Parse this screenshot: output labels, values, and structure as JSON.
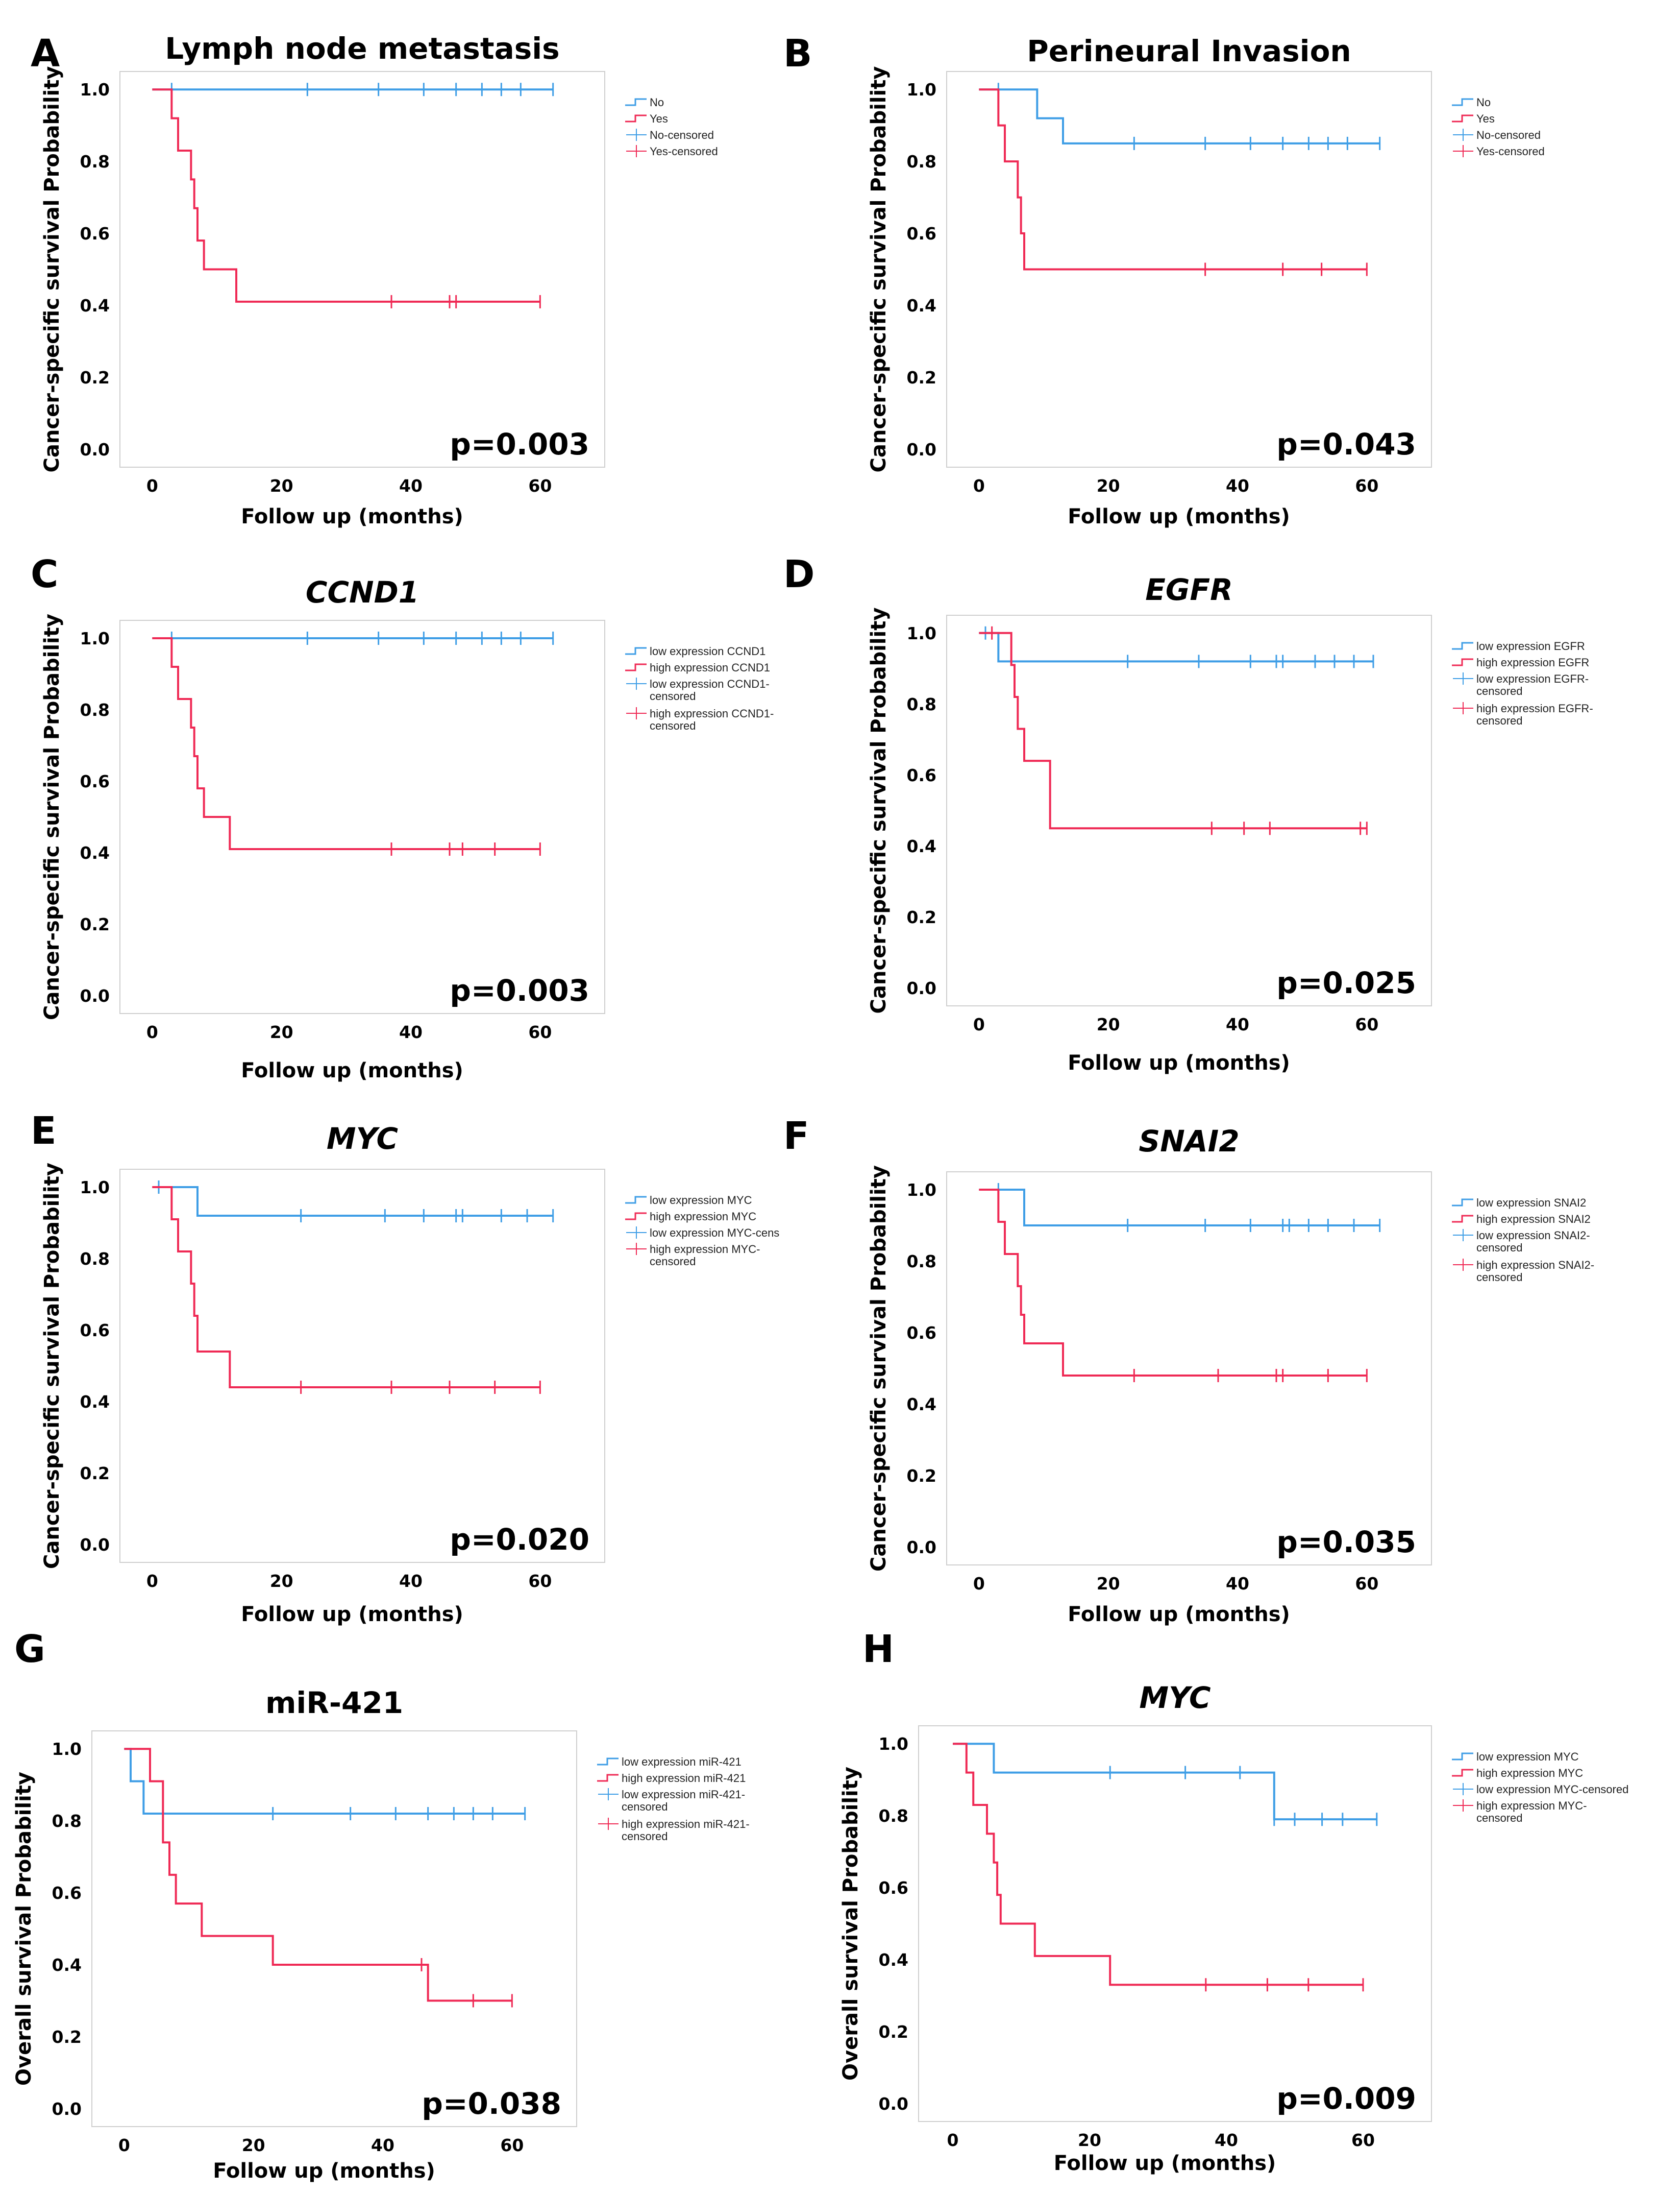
{
  "colors": {
    "low": "#3f9ee6",
    "high": "#ef2a55"
  },
  "x_label": "Follow up (months)",
  "chart_data": [
    {
      "type": "line",
      "panel": "A",
      "title": "Lymph node metastasis",
      "title_italic": false,
      "ylabel": "Cancer-specific survival Probability",
      "xlabel": "Follow up (months)",
      "xlim": [
        -5,
        70
      ],
      "ylim": [
        -0.05,
        1.05
      ],
      "xticks": [
        "0",
        "20",
        "40",
        "60"
      ],
      "yticks": [
        "0.0",
        "0.2",
        "0.4",
        "0.6",
        "0.8",
        "1.0"
      ],
      "p_value": "p=0.003",
      "legend": [
        "No",
        "Yes",
        "No-censored",
        "Yes-censored"
      ],
      "series": [
        {
          "name": "No",
          "group": "low",
          "x": [
            0,
            62
          ],
          "y": [
            1.0,
            1.0
          ],
          "censored": [
            3,
            24,
            35,
            42,
            47,
            51,
            54,
            57,
            62
          ]
        },
        {
          "name": "Yes",
          "group": "high",
          "x": [
            0,
            3,
            4,
            6,
            6.5,
            7,
            8,
            13,
            60
          ],
          "y": [
            1.0,
            0.92,
            0.83,
            0.75,
            0.67,
            0.58,
            0.5,
            0.41,
            0.41
          ],
          "censored": [
            37,
            46,
            47,
            60
          ]
        }
      ]
    },
    {
      "type": "line",
      "panel": "B",
      "title": "Perineural Invasion",
      "title_italic": false,
      "ylabel": "Cancer-specific survival Probability",
      "xlabel": "Follow up (months)",
      "xlim": [
        -5,
        70
      ],
      "ylim": [
        -0.05,
        1.05
      ],
      "xticks": [
        "0",
        "20",
        "40",
        "60"
      ],
      "yticks": [
        "0.0",
        "0.2",
        "0.4",
        "0.6",
        "0.8",
        "1.0"
      ],
      "p_value": "p=0.043",
      "legend": [
        "No",
        "Yes",
        "No-censored",
        "Yes-censored"
      ],
      "series": [
        {
          "name": "No",
          "group": "low",
          "x": [
            0,
            9,
            13,
            62
          ],
          "y": [
            1.0,
            0.92,
            0.85,
            0.85
          ],
          "censored": [
            3,
            24,
            35,
            42,
            47,
            51,
            54,
            57,
            62
          ]
        },
        {
          "name": "Yes",
          "group": "high",
          "x": [
            0,
            3,
            4,
            6,
            6.5,
            7,
            60
          ],
          "y": [
            1.0,
            0.9,
            0.8,
            0.7,
            0.6,
            0.5,
            0.5
          ],
          "censored": [
            35,
            47,
            53,
            60
          ]
        }
      ]
    },
    {
      "type": "line",
      "panel": "C",
      "title": "CCND1",
      "title_italic": true,
      "ylabel": "Cancer-specific survival Probability",
      "xlabel": "Follow up (months)",
      "xlim": [
        -5,
        70
      ],
      "ylim": [
        -0.05,
        1.05
      ],
      "xticks": [
        "0",
        "20",
        "40",
        "60"
      ],
      "yticks": [
        "0.0",
        "0.2",
        "0.4",
        "0.6",
        "0.8",
        "1.0"
      ],
      "p_value": "p=0.003",
      "legend": [
        "low expression CCND1",
        "high expression CCND1",
        "low expression CCND1-\ncensored",
        "high expression CCND1-\ncensored"
      ],
      "series": [
        {
          "name": "low expression CCND1",
          "group": "low",
          "x": [
            0,
            62
          ],
          "y": [
            1.0,
            1.0
          ],
          "censored": [
            3,
            24,
            35,
            42,
            47,
            51,
            54,
            57,
            62
          ]
        },
        {
          "name": "high expression CCND1",
          "group": "high",
          "x": [
            0,
            3,
            4,
            6,
            6.5,
            7,
            8,
            12,
            60
          ],
          "y": [
            1.0,
            0.92,
            0.83,
            0.75,
            0.67,
            0.58,
            0.5,
            0.41,
            0.41
          ],
          "censored": [
            37,
            46,
            48,
            53,
            60
          ]
        }
      ]
    },
    {
      "type": "line",
      "panel": "D",
      "title": "EGFR",
      "title_italic": true,
      "ylabel": "Cancer-specific survival Probability",
      "xlabel": "Follow up (months)",
      "xlim": [
        -5,
        70
      ],
      "ylim": [
        -0.05,
        1.05
      ],
      "xticks": [
        "0",
        "20",
        "40",
        "60"
      ],
      "yticks": [
        "0.0",
        "0.2",
        "0.4",
        "0.6",
        "0.8",
        "1.0"
      ],
      "p_value": "p=0.025",
      "legend": [
        "low expression EGFR",
        "high expression EGFR",
        "low expression EGFR-\ncensored",
        "high expression EGFR-\ncensored"
      ],
      "series": [
        {
          "name": "low expression EGFR",
          "group": "low",
          "x": [
            0,
            3,
            61
          ],
          "y": [
            1.0,
            0.92,
            0.92
          ],
          "censored": [
            1,
            23,
            34,
            42,
            46,
            47,
            52,
            55,
            58,
            61
          ]
        },
        {
          "name": "high expression EGFR",
          "group": "high",
          "x": [
            0,
            5,
            5.5,
            6,
            7,
            11,
            60
          ],
          "y": [
            1.0,
            0.91,
            0.82,
            0.73,
            0.64,
            0.45,
            0.45
          ],
          "censored": [
            2,
            36,
            41,
            45,
            59,
            60
          ]
        }
      ]
    },
    {
      "type": "line",
      "panel": "E",
      "title": "MYC",
      "title_italic": true,
      "ylabel": "Cancer-specific survival Probability",
      "xlabel": "Follow up (months)",
      "xlim": [
        -5,
        70
      ],
      "ylim": [
        -0.05,
        1.05
      ],
      "xticks": [
        "0",
        "20",
        "40",
        "60"
      ],
      "yticks": [
        "0.0",
        "0.2",
        "0.4",
        "0.6",
        "0.8",
        "1.0"
      ],
      "p_value": "p=0.020",
      "legend": [
        "low expression MYC",
        "high expression MYC",
        "low expression MYC-cens­",
        "high expression MYC-\ncensored"
      ],
      "series": [
        {
          "name": "low expression MYC",
          "group": "low",
          "x": [
            0,
            7,
            62
          ],
          "y": [
            1.0,
            0.92,
            0.92
          ],
          "censored": [
            1,
            23,
            36,
            42,
            47,
            48,
            54,
            58,
            62
          ]
        },
        {
          "name": "high expression MYC",
          "group": "high",
          "x": [
            0,
            3,
            4,
            6,
            6.5,
            7,
            8,
            12,
            60
          ],
          "y": [
            1.0,
            0.91,
            0.82,
            0.73,
            0.64,
            0.54,
            0.54,
            0.44,
            0.44
          ],
          "censored": [
            23,
            37,
            46,
            53,
            60
          ]
        }
      ]
    },
    {
      "type": "line",
      "panel": "F",
      "title": "SNAI2",
      "title_italic": true,
      "ylabel": "Cancer-specific survival Probability",
      "xlabel": "Follow up (months)",
      "xlim": [
        -5,
        70
      ],
      "ylim": [
        -0.05,
        1.05
      ],
      "xticks": [
        "0",
        "20",
        "40",
        "60"
      ],
      "yticks": [
        "0.0",
        "0.2",
        "0.4",
        "0.6",
        "0.8",
        "1.0"
      ],
      "p_value": "p=0.035",
      "legend": [
        "low expression SNAI2",
        "high expression SNAI2",
        "low expression SNAI2-\ncensored",
        "high expression SNAI2-\ncensored"
      ],
      "series": [
        {
          "name": "low expression SNAI2",
          "group": "low",
          "x": [
            0,
            7,
            62
          ],
          "y": [
            1.0,
            0.9,
            0.9
          ],
          "censored": [
            3,
            23,
            35,
            42,
            47,
            48,
            51,
            54,
            58,
            62
          ]
        },
        {
          "name": "high expression SNAI2",
          "group": "high",
          "x": [
            0,
            3,
            4,
            6,
            6.5,
            7,
            9,
            13,
            60
          ],
          "y": [
            1.0,
            0.91,
            0.82,
            0.73,
            0.65,
            0.57,
            0.57,
            0.48,
            0.48
          ],
          "censored": [
            24,
            37,
            46,
            47,
            54,
            60
          ]
        }
      ]
    },
    {
      "type": "line",
      "panel": "G",
      "title": "miR-421",
      "title_italic": false,
      "ylabel": "Overall survival Probability",
      "xlabel": "Follow up (months)",
      "xlim": [
        -5,
        70
      ],
      "ylim": [
        -0.05,
        1.05
      ],
      "xticks": [
        "0",
        "20",
        "40",
        "60"
      ],
      "yticks": [
        "0.0",
        "0.2",
        "0.4",
        "0.6",
        "0.8",
        "1.0"
      ],
      "p_value": "p=0.038",
      "legend": [
        "low expression miR-421",
        "high expression miR-421",
        "low expression miR-421-\ncensored",
        "high expression miR-421-\ncensored"
      ],
      "series": [
        {
          "name": "low expression miR-421",
          "group": "low",
          "x": [
            0,
            1,
            3,
            62
          ],
          "y": [
            1.0,
            0.91,
            0.82,
            0.82
          ],
          "censored": [
            23,
            35,
            42,
            47,
            51,
            54,
            57,
            62
          ]
        },
        {
          "name": "high expression miR-421",
          "group": "high",
          "x": [
            0,
            4,
            6,
            7,
            8,
            12,
            23,
            47,
            60
          ],
          "y": [
            1.0,
            0.91,
            0.74,
            0.65,
            0.57,
            0.48,
            0.4,
            0.3,
            0.3
          ],
          "censored": [
            46,
            54,
            60
          ]
        }
      ]
    },
    {
      "type": "line",
      "panel": "H",
      "title": "MYC",
      "title_italic": true,
      "ylabel": "Overall survival Probability",
      "xlabel": "Follow up (months)",
      "xlim": [
        -5,
        70
      ],
      "ylim": [
        -0.05,
        1.05
      ],
      "xticks": [
        "0",
        "20",
        "40",
        "60"
      ],
      "yticks": [
        "0.0",
        "0.2",
        "0.4",
        "0.6",
        "0.8",
        "1.0"
      ],
      "p_value": "p=0.009",
      "legend": [
        "low expression MYC",
        "high expression MYC",
        "low expression MYC-censored",
        "high expression MYC-\ncensored"
      ],
      "series": [
        {
          "name": "low expression MYC",
          "group": "low",
          "x": [
            0,
            6,
            47,
            62
          ],
          "y": [
            1.0,
            0.92,
            0.79,
            0.79
          ],
          "censored": [
            23,
            34,
            42,
            47,
            50,
            54,
            57,
            62
          ]
        },
        {
          "name": "high expression MYC",
          "group": "high",
          "x": [
            0,
            2,
            3,
            5,
            6,
            6.5,
            7,
            9,
            12,
            23,
            60
          ],
          "y": [
            1.0,
            0.92,
            0.83,
            0.75,
            0.67,
            0.58,
            0.5,
            0.5,
            0.41,
            0.33,
            0.33
          ],
          "censored": [
            37,
            46,
            52,
            60
          ]
        }
      ]
    }
  ]
}
